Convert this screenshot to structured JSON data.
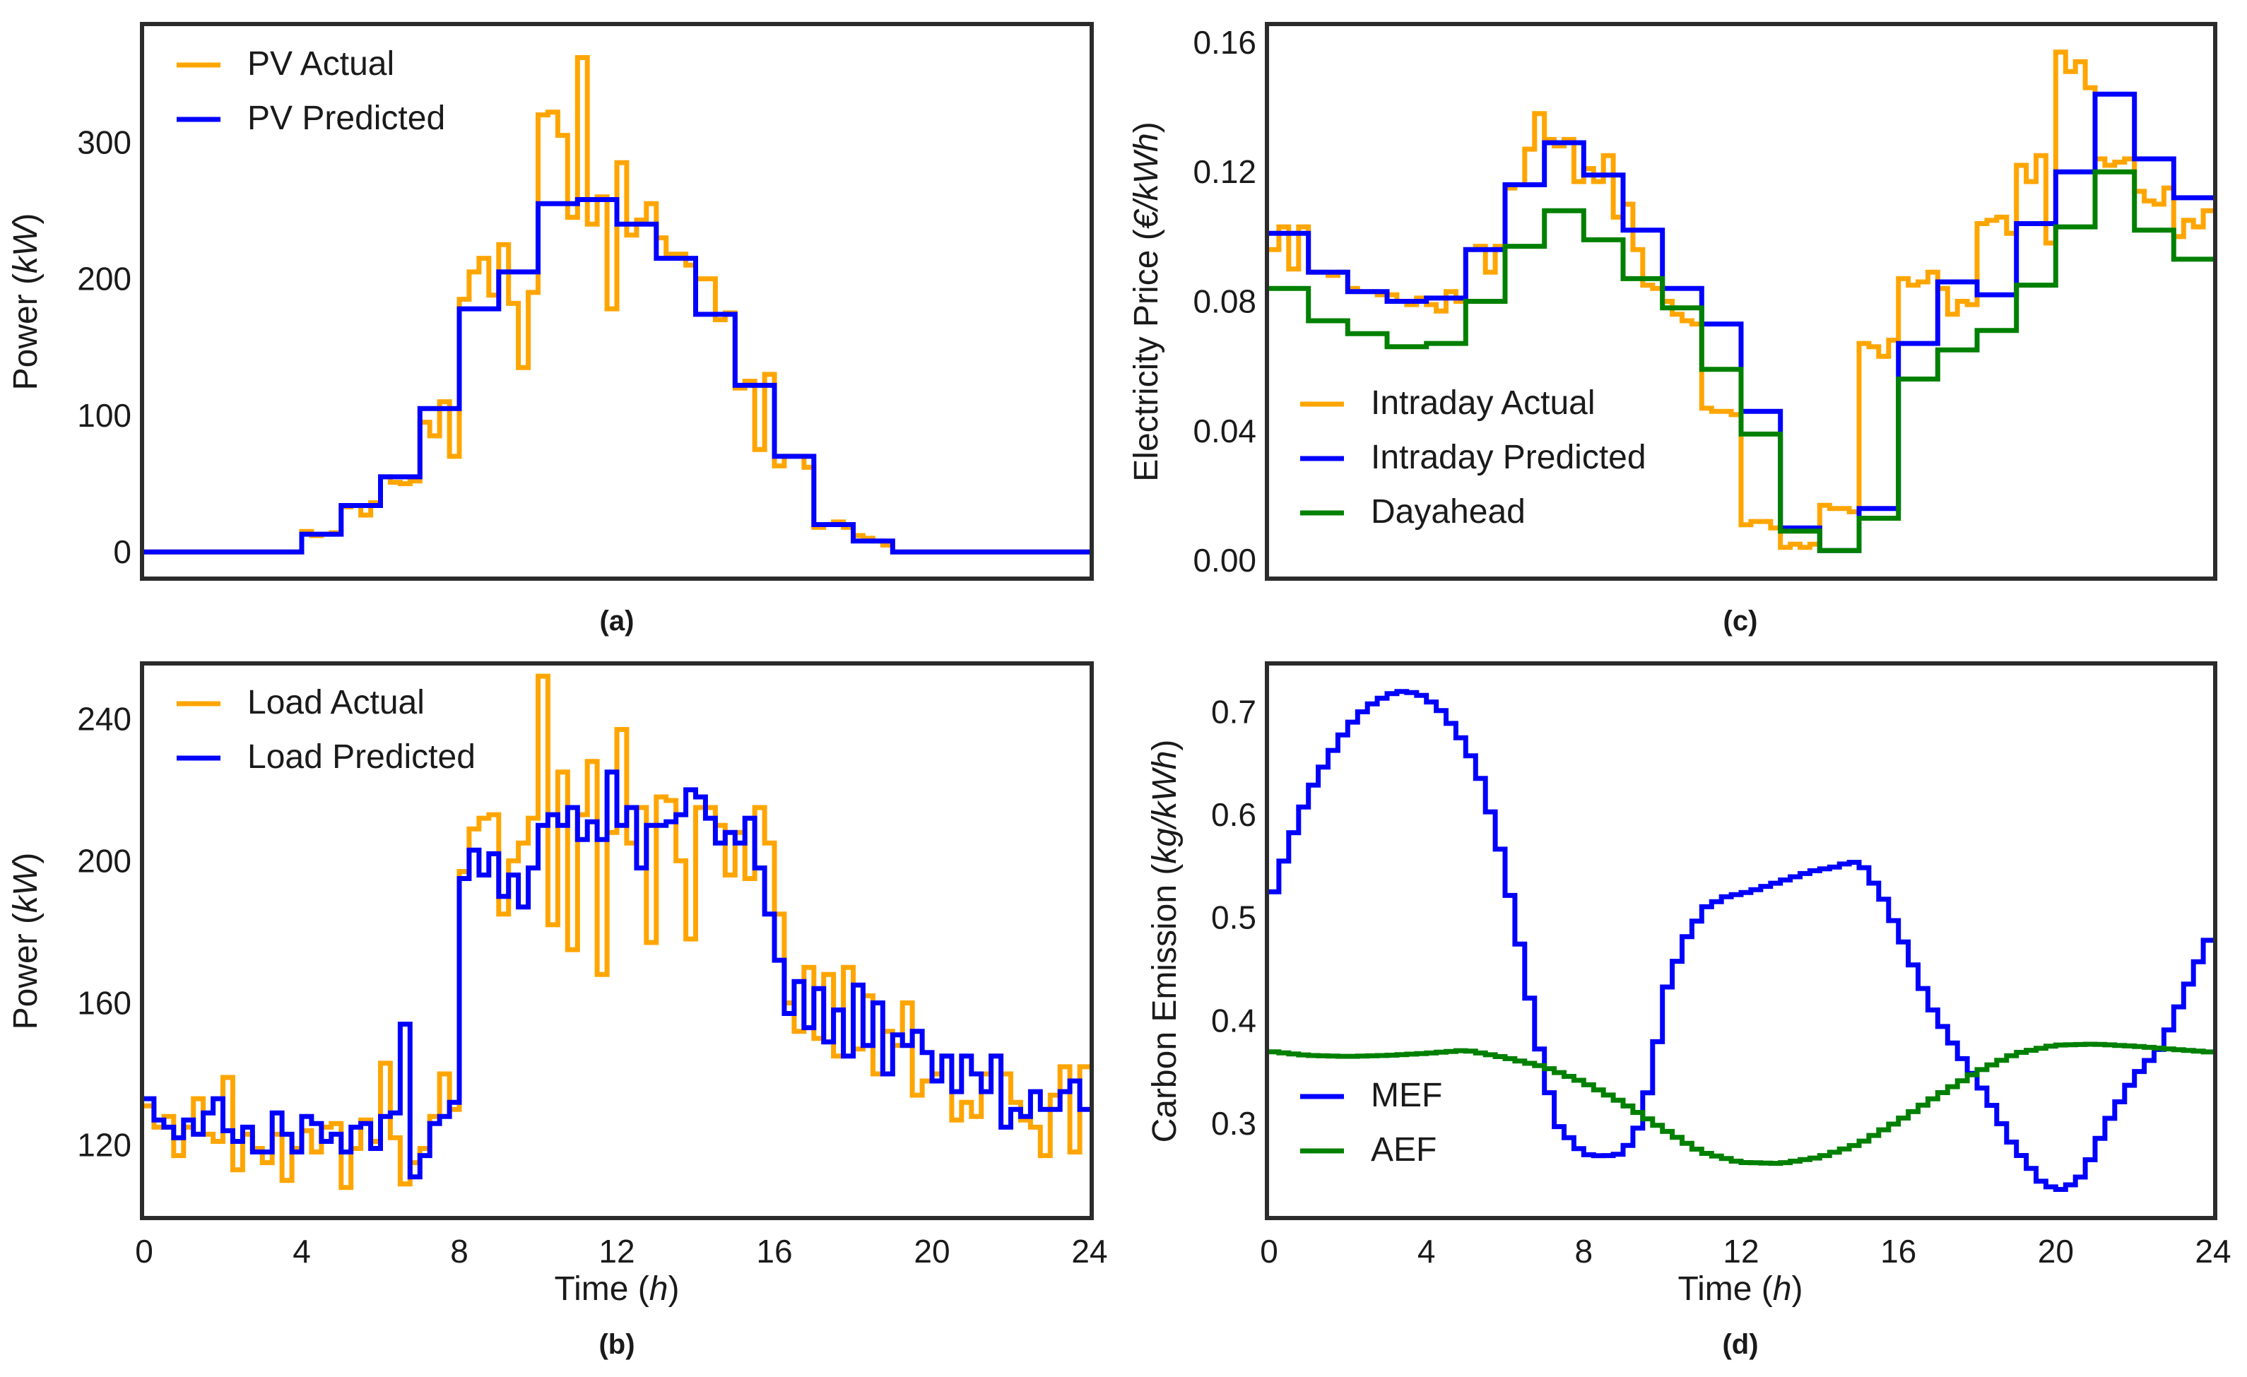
{
  "figure_panels": [
    "(a)",
    "(b)",
    "(c)",
    "(d)"
  ],
  "colors": {
    "actual": "#FFA500",
    "predicted": "#0000FF",
    "dayahead": "#008000",
    "mef": "#0000FF",
    "aef": "#008000"
  },
  "chart_data": [
    {
      "id": "a",
      "type": "line",
      "step": true,
      "panel_label": "(a)",
      "xlabel": "",
      "ylabel": "Power",
      "ylabel_unit": "kW",
      "xlim": [
        0,
        24
      ],
      "ylim": [
        -18,
        385
      ],
      "yticks": [
        0,
        100,
        200,
        300
      ],
      "ytick_labels": [
        "0",
        "100",
        "200",
        "300"
      ],
      "show_xticks": false,
      "legend_loc": "top-left",
      "series": [
        {
          "name": "PV Actual",
          "color": "#FFA500",
          "dx": 0.25,
          "values": [
            0,
            0,
            0,
            0,
            0,
            0,
            0,
            0,
            0,
            0,
            0,
            0,
            0,
            0,
            0,
            0,
            15,
            12,
            13,
            14,
            33,
            34,
            27,
            36,
            55,
            51,
            50,
            52,
            95,
            85,
            110,
            70,
            185,
            205,
            215,
            188,
            225,
            182,
            135,
            190,
            320,
            322,
            305,
            245,
            362,
            240,
            260,
            178,
            285,
            232,
            243,
            255,
            230,
            218,
            218,
            210,
            200,
            200,
            170,
            175,
            120,
            125,
            75,
            130,
            63,
            70,
            70,
            62,
            18,
            20,
            22,
            18,
            12,
            10,
            8,
            5,
            0,
            0,
            0,
            0,
            0,
            0,
            0,
            0,
            0,
            0,
            0,
            0,
            0,
            0,
            0,
            0,
            0,
            0,
            0,
            0
          ]
        },
        {
          "name": "PV Predicted",
          "color": "#0000FF",
          "dx": 1.0,
          "values": [
            0,
            0,
            0,
            0,
            13,
            34,
            55,
            105,
            178,
            205,
            255,
            258,
            240,
            215,
            174,
            122,
            70,
            20,
            8,
            0,
            0,
            0,
            0,
            0
          ]
        }
      ]
    },
    {
      "id": "b",
      "type": "line",
      "step": true,
      "panel_label": "(b)",
      "xlabel": "Time",
      "xlabel_unit": "h",
      "ylabel": "Power",
      "ylabel_unit": "kW",
      "xlim": [
        0,
        24
      ],
      "ylim": [
        100,
        255
      ],
      "xticks": [
        0,
        4,
        8,
        12,
        16,
        20,
        24
      ],
      "xtick_labels": [
        "0",
        "4",
        "8",
        "12",
        "16",
        "20",
        "24"
      ],
      "yticks": [
        120,
        160,
        200,
        240
      ],
      "ytick_labels": [
        "120",
        "160",
        "200",
        "240"
      ],
      "legend_loc": "top-left",
      "series": [
        {
          "name": "Load Actual",
          "color": "#FFA500",
          "dx": 0.25,
          "values": [
            131,
            125,
            128,
            117,
            125,
            133,
            123,
            121,
            139,
            113,
            123,
            119,
            115,
            123,
            110,
            119,
            124,
            118,
            125,
            126,
            108,
            119,
            127,
            121,
            143,
            122,
            109,
            115,
            119,
            128,
            140,
            130,
            197,
            209,
            212,
            213,
            185,
            200,
            205,
            212,
            252,
            182,
            225,
            175,
            213,
            228,
            168,
            208,
            237,
            205,
            215,
            177,
            218,
            217,
            200,
            178,
            215,
            215,
            210,
            196,
            208,
            195,
            215,
            205,
            185,
            160,
            152,
            170,
            150,
            168,
            145,
            170,
            147,
            162,
            140,
            152,
            148,
            160,
            134,
            138,
            140,
            145,
            127,
            132,
            128,
            140,
            145,
            140,
            132,
            127,
            125,
            117,
            134,
            142,
            118,
            142
          ]
        },
        {
          "name": "Load Predicted",
          "color": "#0000FF",
          "dx": 0.25,
          "values": [
            133,
            127,
            125,
            122,
            127,
            123,
            129,
            133,
            124,
            121,
            125,
            118,
            118,
            129,
            123,
            118,
            128,
            126,
            121,
            123,
            118,
            125,
            126,
            119,
            128,
            129,
            154,
            111,
            117,
            126,
            128,
            132,
            195,
            203,
            196,
            202,
            190,
            196,
            187,
            198,
            210,
            213,
            210,
            215,
            206,
            211,
            206,
            225,
            210,
            215,
            198,
            210,
            210,
            211,
            213,
            220,
            218,
            212,
            205,
            208,
            205,
            212,
            198,
            185,
            172,
            157,
            166,
            153,
            164,
            149,
            158,
            145,
            165,
            148,
            160,
            140,
            151,
            148,
            152,
            146,
            138,
            145,
            135,
            145,
            140,
            135,
            145,
            125,
            130,
            128,
            135,
            130,
            130,
            135,
            138,
            130
          ]
        }
      ]
    },
    {
      "id": "c",
      "type": "line",
      "step": true,
      "panel_label": "(c)",
      "xlabel": "",
      "ylabel": "Electricity Price",
      "ylabel_unit": "€/kWh",
      "xlim": [
        0,
        24
      ],
      "ylim": [
        -0.005,
        0.165
      ],
      "yticks": [
        0.0,
        0.04,
        0.08,
        0.12,
        0.16
      ],
      "ytick_labels": [
        "0.00",
        "0.04",
        "0.08",
        "0.12",
        "0.16"
      ],
      "show_xticks": false,
      "legend_loc": "bottom-left",
      "series": [
        {
          "name": "Intraday Actual",
          "color": "#FFA500",
          "dx": 0.25,
          "values": [
            0.096,
            0.103,
            0.09,
            0.103,
            0.089,
            0.089,
            0.088,
            0.089,
            0.084,
            0.083,
            0.083,
            0.082,
            0.082,
            0.08,
            0.079,
            0.081,
            0.079,
            0.077,
            0.083,
            0.08,
            0.096,
            0.097,
            0.089,
            0.097,
            0.115,
            0.116,
            0.127,
            0.138,
            0.13,
            0.128,
            0.13,
            0.117,
            0.121,
            0.117,
            0.125,
            0.106,
            0.11,
            0.096,
            0.085,
            0.084,
            0.08,
            0.076,
            0.074,
            0.073,
            0.047,
            0.046,
            0.046,
            0.045,
            0.011,
            0.012,
            0.012,
            0.01,
            0.004,
            0.005,
            0.004,
            0.005,
            0.017,
            0.016,
            0.016,
            0.015,
            0.067,
            0.066,
            0.063,
            0.068,
            0.087,
            0.085,
            0.086,
            0.089,
            0.084,
            0.076,
            0.08,
            0.079,
            0.104,
            0.105,
            0.106,
            0.101,
            0.122,
            0.117,
            0.125,
            0.098,
            0.157,
            0.151,
            0.154,
            0.146,
            0.124,
            0.122,
            0.123,
            0.124,
            0.114,
            0.111,
            0.11,
            0.115,
            0.1,
            0.105,
            0.103,
            0.108
          ]
        },
        {
          "name": "Intraday Predicted",
          "color": "#0000FF",
          "dx": 1.0,
          "values": [
            0.101,
            0.089,
            0.083,
            0.08,
            0.081,
            0.096,
            0.116,
            0.129,
            0.119,
            0.102,
            0.084,
            0.073,
            0.046,
            0.01,
            0.003,
            0.016,
            0.067,
            0.086,
            0.082,
            0.104,
            0.12,
            0.144,
            0.124,
            0.112
          ]
        },
        {
          "name": "Dayahead",
          "color": "#008000",
          "dx": 1.0,
          "values": [
            0.084,
            0.074,
            0.07,
            0.066,
            0.067,
            0.08,
            0.097,
            0.108,
            0.099,
            0.087,
            0.078,
            0.059,
            0.039,
            0.009,
            0.003,
            0.013,
            0.056,
            0.065,
            0.071,
            0.085,
            0.103,
            0.12,
            0.102,
            0.093
          ]
        }
      ]
    },
    {
      "id": "d",
      "type": "line",
      "step": true,
      "panel_label": "(d)",
      "xlabel": "Time",
      "xlabel_unit": "h",
      "ylabel": "Carbon Emission",
      "ylabel_unit": "kg/kWh",
      "xlim": [
        0,
        24
      ],
      "ylim": [
        0.21,
        0.745
      ],
      "xticks": [
        0,
        4,
        8,
        12,
        16,
        20,
        24
      ],
      "xtick_labels": [
        "0",
        "4",
        "8",
        "12",
        "16",
        "20",
        "24"
      ],
      "yticks": [
        0.3,
        0.4,
        0.5,
        0.6,
        0.7
      ],
      "ytick_labels": [
        "0.3",
        "0.4",
        "0.5",
        "0.6",
        "0.7"
      ],
      "legend_loc": "bottom-left",
      "series": [
        {
          "name": "MEF",
          "color": "#0000FF",
          "dx": 0.25,
          "x_knots": [
            0,
            0.5,
            1,
            1.5,
            2,
            2.5,
            3,
            3.3,
            3.8,
            4.3,
            4.8,
            5.3,
            5.8,
            6.3,
            6.8,
            7.3,
            8,
            8.5,
            8.9,
            9.3,
            9.7,
            10.1,
            10.6,
            11.1,
            11.6,
            12.2,
            13,
            13.8,
            14.5,
            14.8,
            15.1,
            15.6,
            16.2,
            16.8,
            17.5,
            18.2,
            18.9,
            19.4,
            19.7,
            20.2,
            20.7,
            21.3,
            22,
            22.7,
            23.2,
            23.6,
            23.9
          ],
          "y_knots": [
            0.51,
            0.57,
            0.62,
            0.655,
            0.685,
            0.705,
            0.716,
            0.72,
            0.718,
            0.705,
            0.68,
            0.645,
            0.58,
            0.49,
            0.385,
            0.3,
            0.27,
            0.268,
            0.27,
            0.285,
            0.34,
            0.43,
            0.48,
            0.51,
            0.52,
            0.525,
            0.535,
            0.545,
            0.55,
            0.555,
            0.55,
            0.52,
            0.47,
            0.415,
            0.37,
            0.33,
            0.28,
            0.255,
            0.24,
            0.235,
            0.25,
            0.3,
            0.345,
            0.375,
            0.42,
            0.455,
            0.48
          ]
        },
        {
          "name": "AEF",
          "color": "#008000",
          "dx": 0.25,
          "x_knots": [
            0,
            1,
            2,
            3,
            4,
            5,
            6,
            7,
            8,
            9,
            10,
            11,
            12,
            13,
            14,
            15,
            16,
            17,
            18,
            19,
            20,
            21,
            22,
            23,
            24
          ],
          "y_knots": [
            0.37,
            0.366,
            0.365,
            0.366,
            0.368,
            0.371,
            0.364,
            0.355,
            0.34,
            0.32,
            0.295,
            0.272,
            0.262,
            0.261,
            0.267,
            0.28,
            0.302,
            0.327,
            0.35,
            0.368,
            0.376,
            0.377,
            0.375,
            0.372,
            0.369
          ]
        }
      ]
    }
  ]
}
